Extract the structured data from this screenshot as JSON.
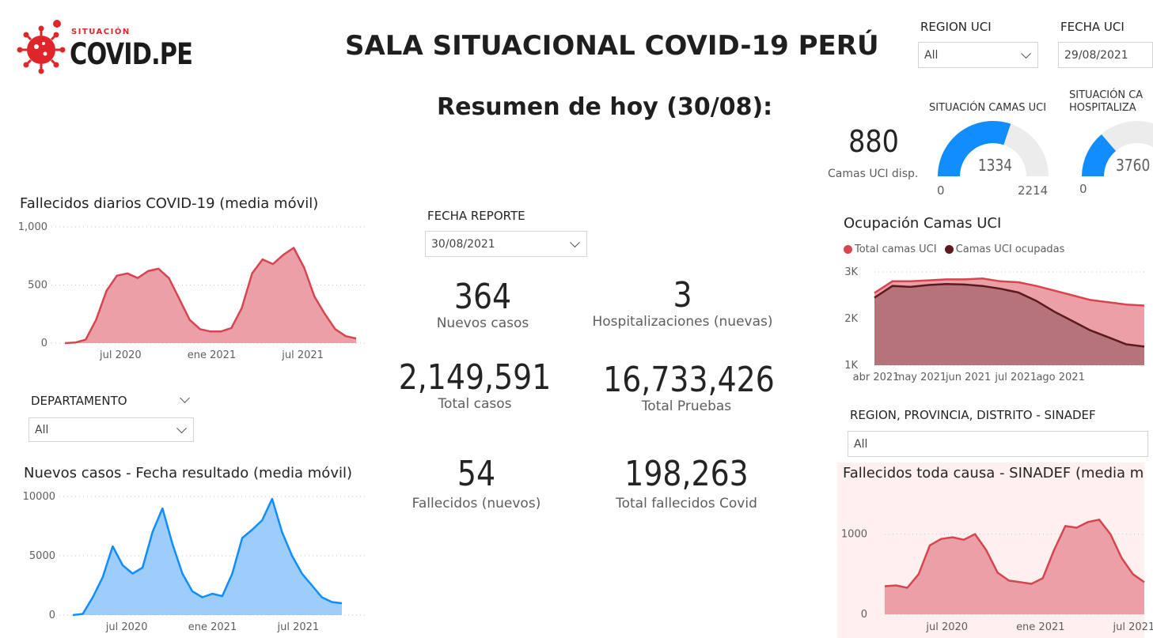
{
  "logo": {
    "top": "SITUACIÓN",
    "main": "COVID.PE"
  },
  "title": "SALA SITUACIONAL COVID-19 PERÚ",
  "subtitle": "Resumen de hoy (30/08):",
  "region_uci": {
    "label": "REGION UCI",
    "value": "All"
  },
  "fecha_uci": {
    "label": "FECHA UCI",
    "value": "29/08/2021"
  },
  "fecha_reporte": {
    "label": "FECHA REPORTE",
    "value": "30/08/2021"
  },
  "departamento": {
    "label": "DEPARTAMENTO",
    "value": "All"
  },
  "region_sinadef": {
    "label": "REGION, PROVINCIA, DISTRITO - SINADEF",
    "value": "All"
  },
  "kpis": {
    "nuevos_casos": {
      "value": "364",
      "label": "Nuevos casos"
    },
    "hospitalizaciones": {
      "value": "3",
      "label": "Hospitalizaciones (nuevas)"
    },
    "total_casos": {
      "value": "2,149,591",
      "label": "Total casos"
    },
    "total_pruebas": {
      "value": "16,733,426",
      "label": "Total Pruebas"
    },
    "fallecidos_nuevos": {
      "value": "54",
      "label": "Fallecidos (nuevos)"
    },
    "total_fallecidos": {
      "value": "198,263",
      "label": "Total fallecidos Covid"
    }
  },
  "uci": {
    "camas_disp_value": "880",
    "camas_disp_label": "Camas UCI disp.",
    "gauge1": {
      "title": "SITUACIÓN CAMAS UCI",
      "value": 1334,
      "min": 0,
      "max": 2214,
      "value_label": "1334",
      "min_label": "0",
      "max_label": "2214"
    },
    "gauge2": {
      "title_line1": "SITUACIÓN CA",
      "title_line2": "HOSPITALIZA",
      "value_label": "3760",
      "min_label": "0"
    }
  },
  "colors": {
    "red": "#d64550",
    "red_fill": "#eaa0a6",
    "blue": "#118dff",
    "blue_fill": "#9ccdfb",
    "dark": "#5a1a1f",
    "gauge_bg": "#ececec",
    "sinadef_bg": "#fdf0ee"
  },
  "chart_data": [
    {
      "id": "fallecidos",
      "type": "area",
      "title": "Fallecidos diarios COVID-19 (media móvil)",
      "y_ticks": [
        "0",
        "500",
        "1,000"
      ],
      "y_tick_values": [
        0,
        500,
        1000
      ],
      "x_ticks": [
        "jul 2020",
        "ene 2021",
        "jul 2021"
      ],
      "x_tick_positions": [
        0.22,
        0.51,
        0.8
      ],
      "ylim": [
        0,
        1000
      ],
      "values": [
        0,
        5,
        30,
        200,
        450,
        580,
        600,
        560,
        620,
        640,
        560,
        380,
        200,
        120,
        100,
        100,
        130,
        300,
        600,
        720,
        680,
        760,
        820,
        650,
        400,
        250,
        120,
        60,
        40
      ]
    },
    {
      "id": "nuevos_casos",
      "type": "area",
      "title": "Nuevos casos - Fecha resultado (media móvil)",
      "y_ticks": [
        "0",
        "5000",
        "10000"
      ],
      "y_tick_values": [
        0,
        5000,
        10000
      ],
      "x_ticks": [
        "jul 2020",
        "ene 2021",
        "jul 2021"
      ],
      "x_tick_positions": [
        0.22,
        0.5,
        0.78
      ],
      "ylim": [
        0,
        10000
      ],
      "values": [
        0,
        100,
        1500,
        3200,
        5800,
        4200,
        3500,
        4000,
        7000,
        9000,
        6000,
        3500,
        2000,
        1500,
        1800,
        1600,
        3500,
        6500,
        7200,
        8000,
        9800,
        7000,
        5000,
        3500,
        2500,
        1500,
        1100,
        1000
      ]
    },
    {
      "id": "ocupacion_uci",
      "type": "area",
      "title": "Ocupación Camas UCI",
      "legend": [
        "Total camas UCI",
        "Camas UCI ocupadas"
      ],
      "y_ticks": [
        "1K",
        "2K",
        "3K"
      ],
      "y_tick_values": [
        1000,
        2000,
        3000
      ],
      "x_ticks": [
        "abr 2021",
        "may 2021",
        "jun 2021",
        "jul 2021",
        "ago 2021"
      ],
      "x_tick_positions": [
        0.04,
        0.19,
        0.35,
        0.51,
        0.66
      ],
      "ylim": [
        1000,
        3000
      ],
      "series": [
        {
          "name": "Total camas UCI",
          "values": [
            2550,
            2800,
            2800,
            2820,
            2840,
            2840,
            2860,
            2800,
            2780,
            2700,
            2600,
            2500,
            2400,
            2350,
            2300,
            2280
          ]
        },
        {
          "name": "Camas UCI ocupadas",
          "values": [
            2450,
            2700,
            2680,
            2720,
            2740,
            2730,
            2700,
            2640,
            2560,
            2380,
            2150,
            1950,
            1750,
            1600,
            1450,
            1400
          ]
        }
      ]
    },
    {
      "id": "sinadef",
      "type": "area",
      "title": "Fallecidos toda causa - SINADEF (media m",
      "y_ticks": [
        "0",
        "1000"
      ],
      "y_tick_values": [
        0,
        1000
      ],
      "x_ticks": [
        "jul 2020",
        "ene 2021",
        "jul 2021"
      ],
      "x_tick_positions": [
        0.24,
        0.6,
        0.96
      ],
      "ylim": [
        0,
        1400
      ],
      "values": [
        350,
        360,
        330,
        500,
        860,
        940,
        960,
        930,
        1000,
        800,
        520,
        420,
        400,
        380,
        450,
        800,
        1100,
        1080,
        1150,
        1180,
        1000,
        700,
        500,
        400
      ]
    }
  ]
}
